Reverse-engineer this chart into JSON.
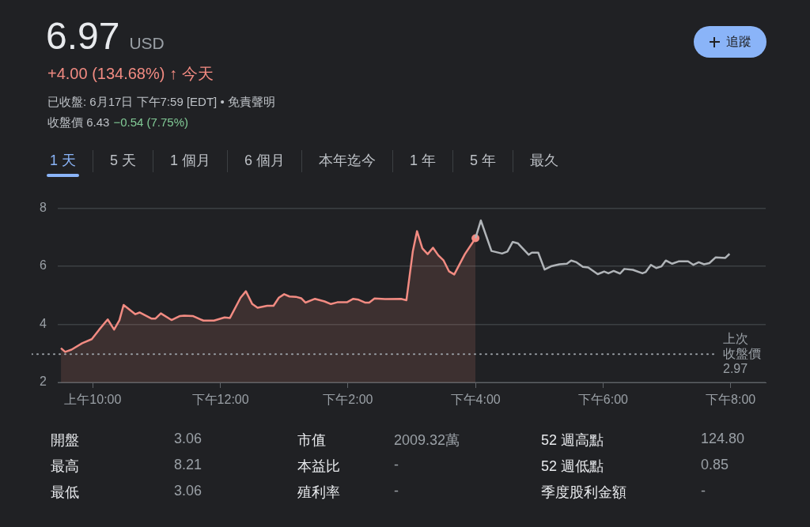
{
  "chart_data": {
    "type": "line",
    "title": "6.97 USD",
    "subtitle": "+4.00 (134.68%) ↑ 今天",
    "annotations": [
      "已收盤: 6月17日 下午7:59 [EDT] • 免責聲明",
      "收盤價 6.43",
      "−0.54 (7.75%)",
      "追蹤",
      "1 天",
      "5 天",
      "1 個月",
      "6 個月",
      "本年迄今",
      "1 年",
      "5 年",
      "最久",
      "開盤",
      "3.06",
      "市值",
      "2009.32萬",
      "52 週高點",
      "124.80",
      "最高",
      "8.21",
      "本益比",
      "-",
      "52 週低點",
      "0.85",
      "最低",
      "3.06",
      "殖利率",
      "-",
      "季度股利金額",
      "-"
    ],
    "series": [
      {
        "type": "area",
        "color": "#f28b82",
        "x": [
          "--06-17T09:30",
          "--06-17T09:34",
          "--06-17T09:40",
          "--06-17T09:50",
          "--06-17T09:59",
          "--06-17T10:06",
          "--06-17T10:14",
          "--06-17T10:20",
          "--06-17T10:25",
          "--06-17T10:29",
          "--06-17T10:40",
          "--06-17T10:44",
          "--06-17T10:55",
          "--06-17T10:59",
          "--06-17T11:04",
          "--06-17T11:14",
          "--06-17T11:22",
          "--06-17T11:26",
          "--06-17T11:34",
          "--06-17T11:44",
          "--06-17T11:54",
          "--06-17T12:04",
          "--06-17T12:09",
          "--06-17T12:19",
          "--06-17T12:24",
          "--06-17T12:30",
          "--06-17T12:35",
          "--06-17T12:44",
          "--06-17T12:50",
          "--06-17T12:55",
          "--06-17T13:00",
          "--06-17T13:05",
          "--06-17T13:11",
          "--06-17T13:16",
          "--06-17T13:20",
          "--06-17T13:29",
          "--06-17T13:38",
          "--06-17T13:44",
          "--06-17T13:50",
          "--06-17T13:59",
          "--06-17T14:05",
          "--06-17T14:10",
          "--06-17T14:16",
          "--06-17T14:20",
          "--06-17T14:25",
          "--06-17T14:35",
          "--06-17T14:50",
          "--06-17T14:55",
          "--06-17T15:01",
          "--06-17T15:05",
          "--06-17T15:10",
          "--06-17T15:15",
          "--06-17T15:20",
          "--06-17T15:25",
          "--06-17T15:30",
          "--06-17T15:35",
          "--06-17T15:40",
          "--06-17T15:50",
          "--06-17T16:00"
        ],
        "values": [
          3.18,
          3.05,
          3.13,
          3.35,
          3.49,
          3.82,
          4.17,
          3.82,
          4.14,
          4.67,
          4.35,
          4.41,
          4.2,
          4.2,
          4.38,
          4.15,
          4.29,
          4.3,
          4.29,
          4.13,
          4.13,
          4.24,
          4.22,
          4.92,
          5.14,
          4.7,
          4.57,
          4.64,
          4.64,
          4.92,
          5.04,
          4.96,
          4.95,
          4.9,
          4.75,
          4.88,
          4.79,
          4.7,
          4.76,
          4.76,
          4.88,
          4.85,
          4.75,
          4.75,
          4.89,
          4.87,
          4.88,
          4.83,
          6.51,
          7.21,
          6.62,
          6.42,
          6.64,
          6.38,
          6.2,
          5.83,
          5.72,
          6.42,
          6.97
        ]
      },
      {
        "type": "line",
        "color": "#b0b4b8",
        "x": [
          "--06-17T16:00",
          "--06-17T16:05",
          "--06-17T16:15",
          "--06-17T16:25",
          "--06-17T16:30",
          "--06-17T16:35",
          "--06-17T16:40",
          "--06-17T16:50",
          "--06-17T16:53",
          "--06-17T16:59",
          "--06-17T17:05",
          "--06-17T17:11",
          "--06-17T17:19",
          "--06-17T17:26",
          "--06-17T17:30",
          "--06-17T17:35",
          "--06-17T17:41",
          "--06-17T17:46",
          "--06-17T17:55",
          "--06-17T18:01",
          "--06-17T18:05",
          "--06-17T18:10",
          "--06-17T18:16",
          "--06-17T18:20",
          "--06-17T18:28",
          "--06-17T18:37",
          "--06-17T18:40",
          "--06-17T18:45",
          "--06-17T18:50",
          "--06-17T18:55",
          "--06-17T18:59",
          "--06-17T19:05",
          "--06-17T19:11",
          "--06-17T19:20",
          "--06-17T19:25",
          "--06-17T19:30",
          "--06-17T19:35",
          "--06-17T19:40",
          "--06-17T19:46",
          "--06-17T19:55",
          "--06-17T19:59"
        ],
        "values": [
          6.97,
          7.58,
          6.53,
          6.44,
          6.51,
          6.84,
          6.79,
          6.4,
          6.47,
          6.47,
          5.89,
          6.0,
          6.07,
          6.09,
          6.2,
          6.14,
          5.98,
          5.96,
          5.73,
          5.82,
          5.76,
          5.84,
          5.75,
          5.91,
          5.88,
          5.76,
          5.8,
          6.05,
          5.94,
          6.0,
          6.2,
          6.09,
          6.17,
          6.17,
          6.05,
          6.14,
          6.07,
          6.11,
          6.31,
          6.29,
          6.43
        ]
      }
    ],
    "xlim": [
      "--06-17T09:27",
      "--06-17T20:33"
    ],
    "xticks": [
      {
        "value": "--06-17T10:00",
        "label": "上午10:00"
      },
      {
        "value": "--06-17T12:00",
        "label": "下午12:00"
      },
      {
        "value": "--06-17T14:00",
        "label": "下午2:00"
      },
      {
        "value": "--06-17T16:00",
        "label": "下午4:00"
      },
      {
        "value": "--06-17T18:00",
        "label": "下午6:00"
      },
      {
        "value": "--06-17T20:00",
        "label": "下午8:00"
      }
    ],
    "ylim": [
      2,
      8
    ],
    "yticks": [
      2,
      4,
      6,
      8
    ],
    "grid": "y",
    "legend": false,
    "ref_lines": [
      {
        "axis": "y",
        "value": 2.97,
        "label": "上次收盤價2.97",
        "line_style": "dotted",
        "color": "#9aa0a6"
      }
    ]
  }
}
